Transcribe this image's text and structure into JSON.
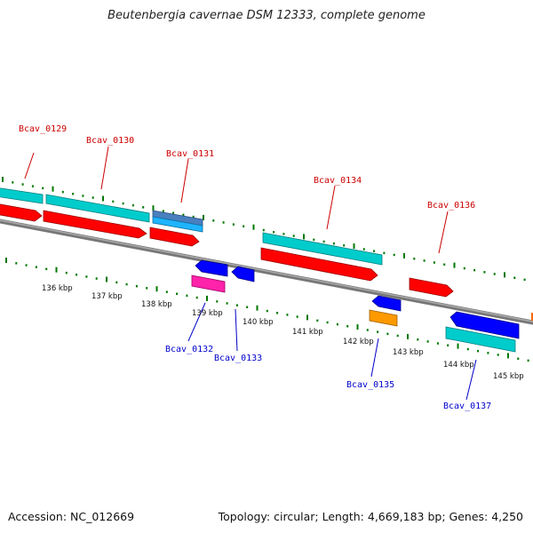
{
  "title": "Beutenbergia cavernae DSM 12333, complete genome",
  "footer": {
    "accession": "Accession: NC_012669",
    "summary": "Topology: circular; Length: 4,669,183 bp; Genes: 4,250"
  },
  "colors": {
    "backbone": "#808080",
    "tick": "#007700",
    "forward_label": "#cc0000",
    "reverse_label": "#0000cc",
    "cds": "#ff0000",
    "gene": "#00cccc",
    "rev_cds": "#0000ff",
    "rev_gene": "#00cccc",
    "other_blue": "#4a7fbf",
    "light_blue": "#1fb4ff",
    "magenta": "#ff22aa",
    "orange": "#ff9900"
  },
  "scale_labels": [
    "136 kbp",
    "137 kbp",
    "138 kbp",
    "139 kbp",
    "140 kbp",
    "141 kbp",
    "142 kbp",
    "143 kbp",
    "144 kbp",
    "145 kbp"
  ],
  "forward_genes": [
    "Bcav_0129",
    "Bcav_0130",
    "Bcav_0131",
    "Bcav_0134",
    "Bcav_0136"
  ],
  "reverse_genes": [
    "Bcav_0132",
    "Bcav_0133",
    "Bcav_0135",
    "Bcav_0137"
  ]
}
